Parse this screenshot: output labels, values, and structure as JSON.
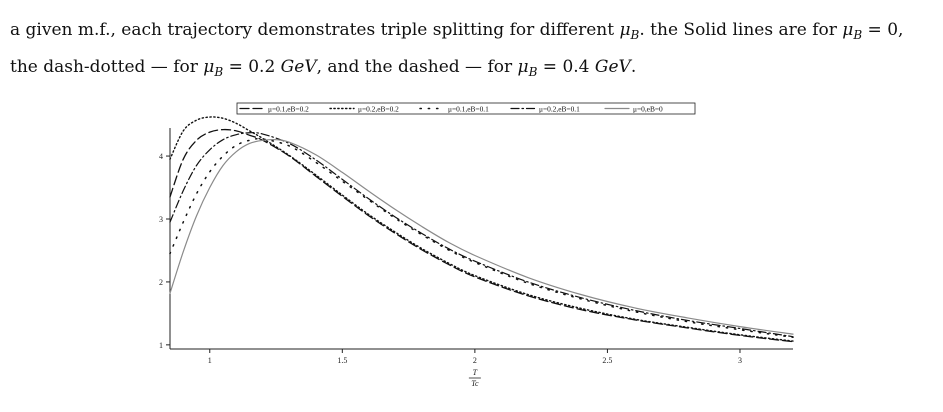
{
  "caption": {
    "line1": {
      "t1": "a given m.f., each trajectory demonstrates triple splitting for different ",
      "mu": "μ",
      "sub": "B",
      "t2": ". the Solid lines are for ",
      "eq": " = 0,"
    },
    "line2": {
      "t1": "the dash-dotted — for ",
      "eq1": " = 0.2 ",
      "unit": "GeV",
      "t2": ", and the dashed — for ",
      "eq2": " = 0.4 ",
      "t3": "."
    }
  },
  "chart_data": {
    "type": "line",
    "title": "",
    "xlabel_num": "T",
    "xlabel_den": "Tc",
    "ylabel": "",
    "xlim": [
      0.85,
      3.2
    ],
    "ylim": [
      0.95,
      4.7
    ],
    "xticks": [
      1,
      1.5,
      2,
      2.5,
      3
    ],
    "xtick_labels": [
      "1",
      "1.5",
      "2",
      "2.5",
      "3"
    ],
    "yticks": [
      1,
      2,
      3,
      4
    ],
    "ytick_labels": [
      "1",
      "2",
      "3",
      "4"
    ],
    "legend_position": "top",
    "colors": {
      "black": "#111111",
      "gray": "#8a8a8a"
    },
    "series": [
      {
        "name": "μ=0.1,eB=0.2",
        "style": "dashed",
        "color": "#111111",
        "x": [
          0.85,
          0.9,
          0.95,
          1.0,
          1.05,
          1.1,
          1.15,
          1.2,
          1.3,
          1.4,
          1.5,
          1.6,
          1.7,
          1.8,
          1.9,
          2.0,
          2.2,
          2.4,
          2.6,
          2.8,
          3.0,
          3.2
        ],
        "y": [
          3.35,
          3.95,
          4.25,
          4.38,
          4.42,
          4.4,
          4.33,
          4.25,
          4.0,
          3.68,
          3.36,
          3.05,
          2.77,
          2.51,
          2.28,
          2.08,
          1.78,
          1.56,
          1.4,
          1.27,
          1.15,
          1.05
        ]
      },
      {
        "name": "μ=0.2,eB=0.2",
        "style": "dotted",
        "color": "#111111",
        "x": [
          0.85,
          0.9,
          0.95,
          1.0,
          1.05,
          1.1,
          1.15,
          1.2,
          1.3,
          1.4,
          1.5,
          1.6,
          1.7,
          1.8,
          1.9,
          2.0,
          2.2,
          2.4,
          2.6,
          2.8,
          3.0,
          3.2
        ],
        "y": [
          3.95,
          4.4,
          4.57,
          4.62,
          4.6,
          4.52,
          4.4,
          4.28,
          4.01,
          3.7,
          3.38,
          3.07,
          2.79,
          2.53,
          2.3,
          2.1,
          1.8,
          1.58,
          1.41,
          1.28,
          1.16,
          1.06
        ]
      },
      {
        "name": "μ=0.1,eB=0.1",
        "style": "sparse-dotted",
        "color": "#111111",
        "x": [
          0.85,
          0.9,
          0.95,
          1.0,
          1.05,
          1.1,
          1.15,
          1.2,
          1.3,
          1.4,
          1.5,
          1.6,
          1.7,
          1.8,
          1.9,
          2.0,
          2.2,
          2.4,
          2.6,
          2.8,
          3.0,
          3.2
        ],
        "y": [
          2.45,
          2.95,
          3.4,
          3.75,
          4.0,
          4.17,
          4.25,
          4.27,
          4.16,
          3.9,
          3.6,
          3.3,
          3.01,
          2.75,
          2.51,
          2.31,
          1.98,
          1.73,
          1.53,
          1.37,
          1.24,
          1.12
        ]
      },
      {
        "name": "μ=0.2,eB=0.1",
        "style": "dash-dot",
        "color": "#111111",
        "x": [
          0.85,
          0.9,
          0.95,
          1.0,
          1.05,
          1.1,
          1.15,
          1.2,
          1.3,
          1.4,
          1.5,
          1.6,
          1.7,
          1.8,
          1.9,
          2.0,
          2.2,
          2.4,
          2.6,
          2.8,
          3.0,
          3.2
        ],
        "y": [
          2.95,
          3.45,
          3.85,
          4.1,
          4.26,
          4.34,
          4.37,
          4.35,
          4.2,
          3.94,
          3.63,
          3.32,
          3.03,
          2.77,
          2.53,
          2.33,
          2.0,
          1.75,
          1.55,
          1.39,
          1.26,
          1.13
        ]
      },
      {
        "name": "μ=0,eB=0",
        "style": "solid",
        "color": "#8a8a8a",
        "x": [
          0.85,
          0.9,
          0.95,
          1.0,
          1.05,
          1.1,
          1.15,
          1.2,
          1.25,
          1.3,
          1.4,
          1.5,
          1.6,
          1.7,
          1.8,
          1.9,
          2.0,
          2.2,
          2.4,
          2.6,
          2.8,
          3.0,
          3.2
        ],
        "y": [
          1.82,
          2.48,
          3.05,
          3.5,
          3.85,
          4.07,
          4.2,
          4.25,
          4.26,
          4.22,
          4.02,
          3.74,
          3.44,
          3.15,
          2.88,
          2.63,
          2.42,
          2.07,
          1.8,
          1.59,
          1.43,
          1.29,
          1.17
        ]
      }
    ]
  }
}
